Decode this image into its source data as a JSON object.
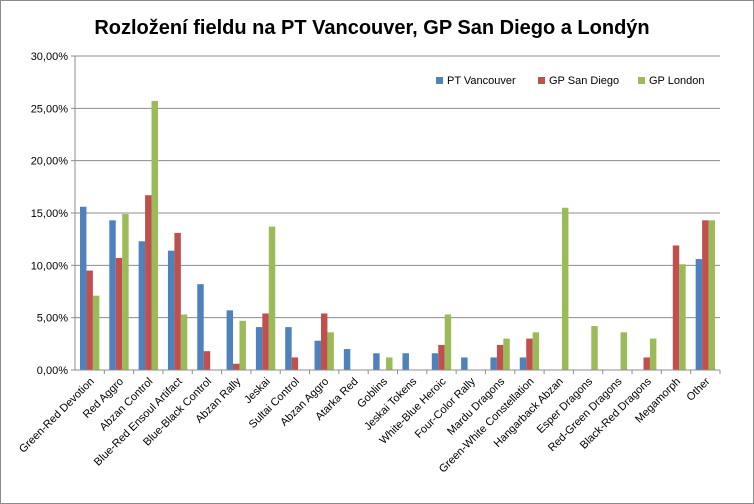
{
  "chart_data": {
    "type": "bar",
    "title": "Rozložení fieldu na PT Vancouver, GP San Diego a Londýn",
    "xlabel": "",
    "ylabel": "",
    "ylim": [
      0,
      0.3
    ],
    "yticks": [
      "0,00%",
      "5,00%",
      "10,00%",
      "15,00%",
      "20,00%",
      "25,00%",
      "30,00%"
    ],
    "grid": true,
    "legend_position": "top-right",
    "categories": [
      "Green-Red Devotion",
      "Red Aggro",
      "Abzan Control",
      "Blue-Red Ensoul Artifact",
      "Blue-Black Control",
      "Abzan Rally",
      "Jeskai",
      "Sultai Control",
      "Abzan Aggro",
      "Atarka Red",
      "Goblins",
      "Jeskai Tokens",
      "White-Blue Heroic",
      "Four-Color Rally",
      "Mardu Dragons",
      "Green-White Constellation",
      "Hangarback Abzan",
      "Esper Dragons",
      "Red-Green Dragons",
      "Black-Red Dragons",
      "Megamorph",
      "Other"
    ],
    "series": [
      {
        "name": "PT Vancouver",
        "color": "#4f81bd",
        "values": [
          0.156,
          0.143,
          0.123,
          0.114,
          0.082,
          0.057,
          0.041,
          0.041,
          0.028,
          0.02,
          0.016,
          0.016,
          0.016,
          0.012,
          0.012,
          0.012,
          0,
          0,
          0,
          0,
          0,
          0.106
        ]
      },
      {
        "name": "GP San Diego",
        "color": "#c0504d",
        "values": [
          0.095,
          0.107,
          0.167,
          0.131,
          0.018,
          0.006,
          0.054,
          0.012,
          0.054,
          0,
          0,
          0,
          0.024,
          0,
          0.024,
          0.03,
          0,
          0,
          0,
          0.012,
          0.119,
          0.143
        ]
      },
      {
        "name": "GP London",
        "color": "#9bbb59",
        "values": [
          0.071,
          0.149,
          0.257,
          0.053,
          0,
          0.047,
          0.137,
          0,
          0.036,
          0,
          0.012,
          0,
          0.053,
          0,
          0.03,
          0.036,
          0.155,
          0.042,
          0.036,
          0.03,
          0.101,
          0.143
        ]
      }
    ]
  }
}
